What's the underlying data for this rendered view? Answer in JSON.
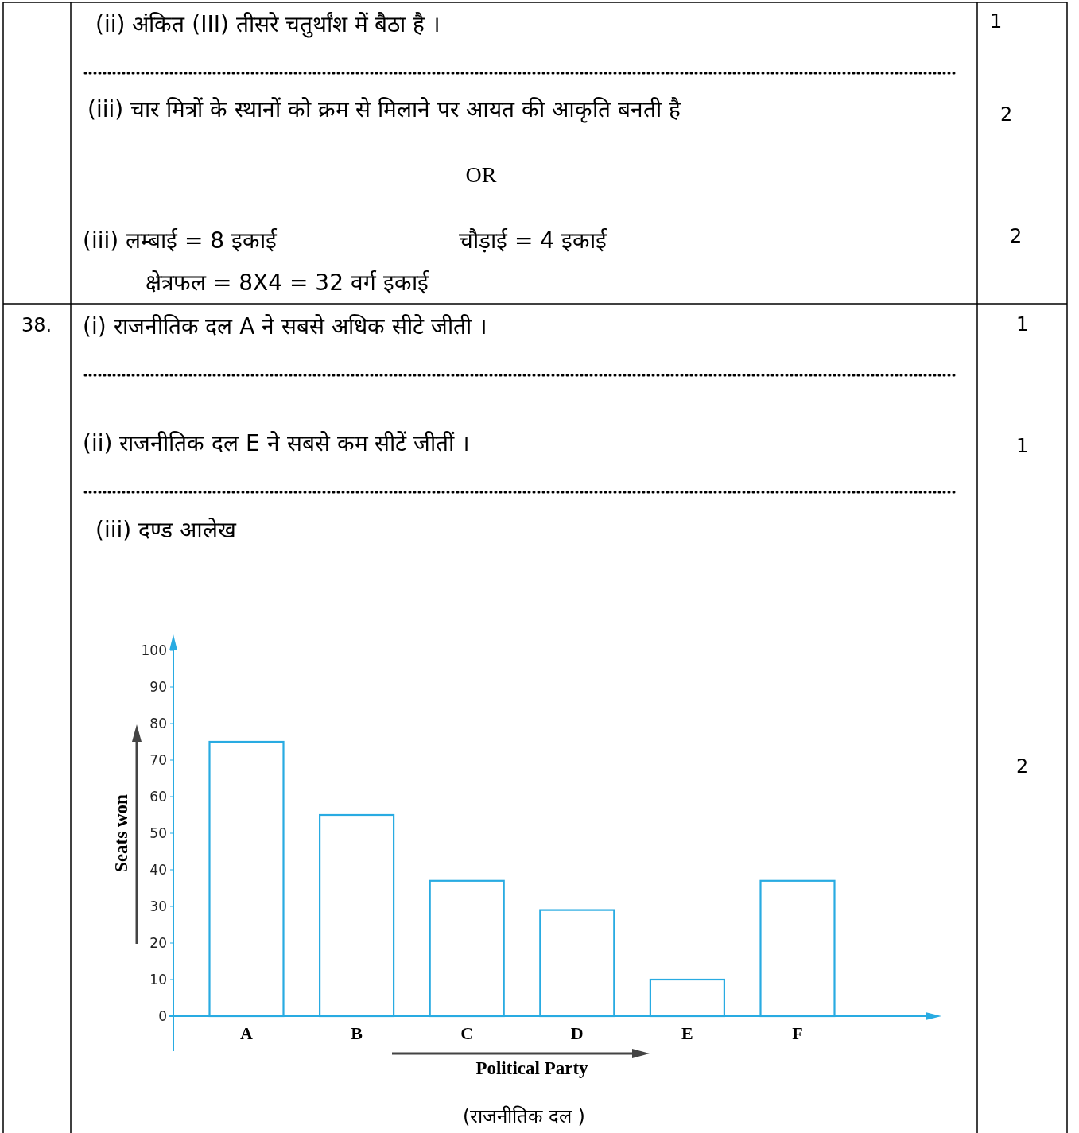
{
  "chart_data": {
    "type": "bar",
    "title": "(iii) दण्ड आलेख",
    "xlabel": "Political Party",
    "ylabel": "Seats won",
    "categories": [
      "A",
      "B",
      "C",
      "D",
      "E",
      "F"
    ],
    "values": [
      75,
      55,
      37,
      29,
      10,
      37
    ],
    "color": "#29abe2",
    "ylim": [
      0,
      100
    ],
    "yticks": [
      0,
      10,
      20,
      30,
      40,
      50,
      60,
      70,
      80,
      90,
      100
    ],
    "annotations": [
      "(ii)   अंकित (III) तीसरे चतुर्थांश में बैठा है ।",
      "1",
      "(iii)   चार मित्रों के स्थानों को क्रम से मिलाने पर आयत की आकृति बनती है",
      "2",
      "OR",
      "(iii)  लम्बाई  =  8  इकाई",
      "चौड़ाई  =  4  इकाई",
      "2",
      "क्षेत्रफल  =  8X4  =  32  वर्ग  इकाई",
      "38.",
      "(i)   राजनीतिक दल A ने सबसे अधिक सीटे जीती ।",
      "1",
      "(ii)   राजनीतिक दल E ने सबसे कम सीटें जीतीं ।",
      "1",
      "2",
      "(राजनीतिक दल )"
    ]
  }
}
